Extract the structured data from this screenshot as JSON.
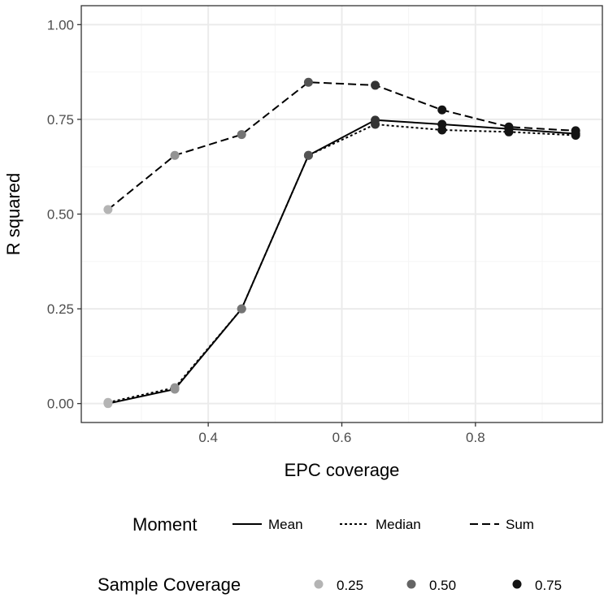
{
  "chart_data": {
    "type": "line",
    "xlabel": "EPC coverage",
    "ylabel": "R squared",
    "xlim": [
      0.21,
      0.99
    ],
    "ylim": [
      -0.05,
      1.05
    ],
    "x_ticks": [
      0.4,
      0.6,
      0.8
    ],
    "x_tick_labels": [
      "0.4",
      "0.6",
      "0.8"
    ],
    "x_minor_ticks": [
      0.3,
      0.5,
      0.7,
      0.9
    ],
    "y_ticks": [
      0.0,
      0.25,
      0.5,
      0.75,
      1.0
    ],
    "y_tick_labels": [
      "0.00",
      "0.25",
      "0.50",
      "0.75",
      "1.00"
    ],
    "y_minor_ticks": [
      0.125,
      0.375,
      0.625,
      0.875
    ],
    "grid": true,
    "x": [
      0.25,
      0.35,
      0.45,
      0.55,
      0.65,
      0.75,
      0.85,
      0.95
    ],
    "series": [
      {
        "name": "Mean",
        "dash": "solid",
        "values": [
          0.0,
          0.038,
          0.25,
          0.655,
          0.748,
          0.737,
          0.725,
          0.712
        ]
      },
      {
        "name": "Median",
        "dash": "dotted",
        "values": [
          0.003,
          0.042,
          0.25,
          0.655,
          0.737,
          0.722,
          0.717,
          0.708
        ]
      },
      {
        "name": "Sum",
        "dash": "dashed",
        "values": [
          0.512,
          0.655,
          0.71,
          0.848,
          0.84,
          0.775,
          0.73,
          0.72
        ]
      }
    ],
    "sample_coverage": [
      0.25,
      0.35,
      0.45,
      0.55,
      0.65,
      0.75,
      0.85,
      0.95
    ],
    "legends": {
      "moment": {
        "title": "Moment",
        "items": [
          "Mean",
          "Median",
          "Sum"
        ]
      },
      "sample_coverage": {
        "title": "Sample Coverage",
        "items": [
          {
            "label": "0.25",
            "value": 0.25
          },
          {
            "label": "0.50",
            "value": 0.5
          },
          {
            "label": "0.75",
            "value": 0.75
          }
        ]
      }
    },
    "colors": {
      "panel_border": "#333333",
      "grid_major": "#ebebeb",
      "grid_minor": "#f5f5f5",
      "line": "#000000",
      "tick_text": "#4d4d4d"
    }
  }
}
